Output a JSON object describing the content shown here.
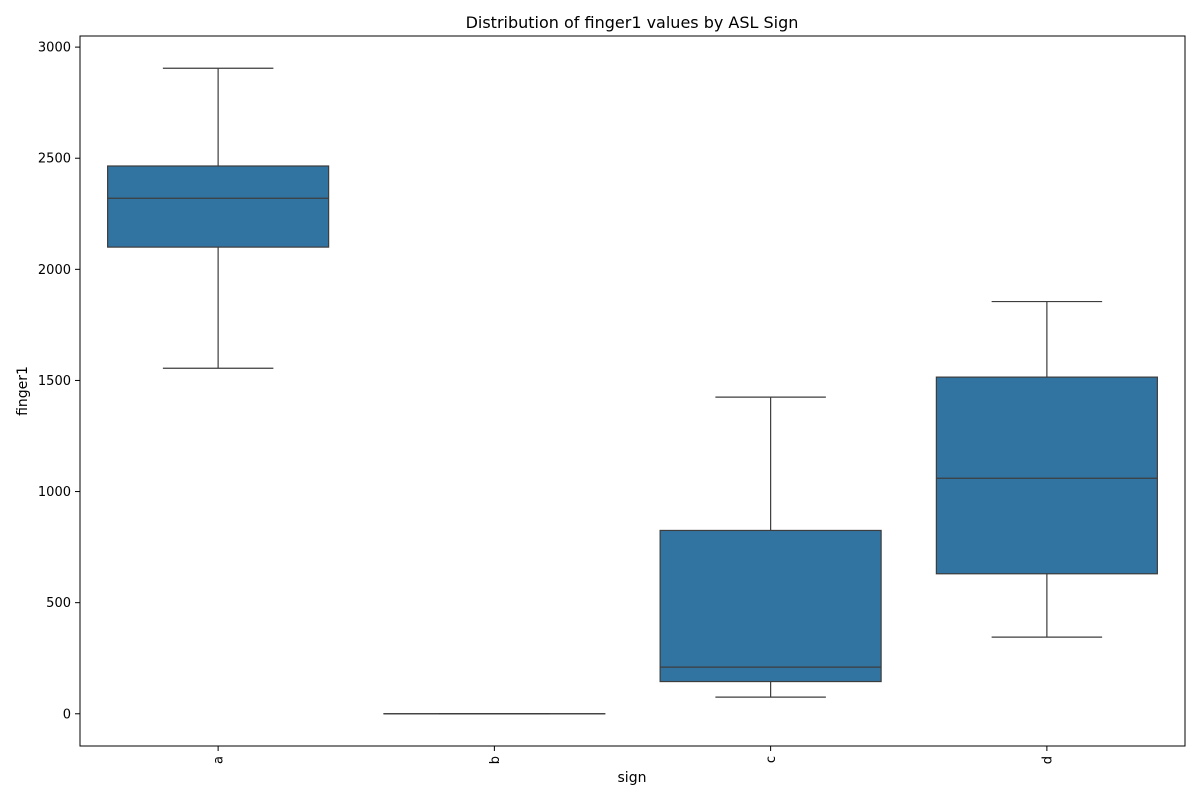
{
  "chart_data": {
    "type": "box",
    "title": "Distribution of finger1 values by ASL Sign",
    "xlabel": "sign",
    "ylabel": "finger1",
    "categories": [
      "a",
      "b",
      "c",
      "d"
    ],
    "ylim": [
      -145,
      3050
    ],
    "yticks": [
      0,
      500,
      1000,
      1500,
      2000,
      2500,
      3000
    ],
    "grid": false,
    "box_color": "#3274a1",
    "line_color": "#3d3d3d",
    "boxes": [
      {
        "category": "a",
        "whisker_low": 1555,
        "q1": 2100,
        "median": 2320,
        "q3": 2465,
        "whisker_high": 2905
      },
      {
        "category": "b",
        "whisker_low": 0,
        "q1": 0,
        "median": 0,
        "q3": 0,
        "whisker_high": 0
      },
      {
        "category": "c",
        "whisker_low": 75,
        "q1": 145,
        "median": 210,
        "q3": 825,
        "whisker_high": 1425
      },
      {
        "category": "d",
        "whisker_low": 345,
        "q1": 630,
        "median": 1060,
        "q3": 1515,
        "whisker_high": 1855
      }
    ]
  }
}
